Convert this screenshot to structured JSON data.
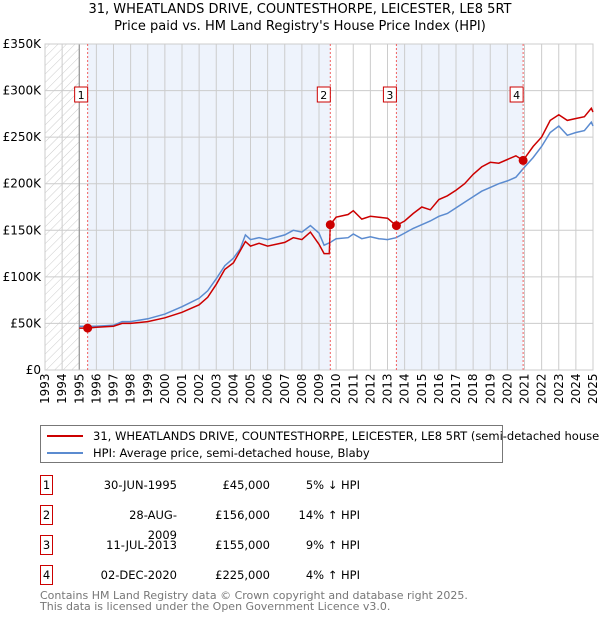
{
  "chart_data": {
    "type": "line",
    "title": "31, WHEATLANDS DRIVE, COUNTESTHORPE, LEICESTER, LE8 5RT",
    "subtitle": "Price paid vs. HM Land Registry's House Price Index (HPI)",
    "xlim": [
      1993,
      2025
    ],
    "ylim": [
      0,
      350000
    ],
    "x_ticks": [
      "1993",
      "1994",
      "1995",
      "1996",
      "1997",
      "1998",
      "1999",
      "2000",
      "2001",
      "2002",
      "2003",
      "2004",
      "2005",
      "2006",
      "2007",
      "2008",
      "2009",
      "2010",
      "2011",
      "2012",
      "2013",
      "2014",
      "2015",
      "2016",
      "2017",
      "2018",
      "2019",
      "2020",
      "2021",
      "2022",
      "2023",
      "2024",
      "2025"
    ],
    "y_ticks": [
      {
        "v": 0,
        "label": "£0"
      },
      {
        "v": 50000,
        "label": "£50K"
      },
      {
        "v": 100000,
        "label": "£100K"
      },
      {
        "v": 150000,
        "label": "£150K"
      },
      {
        "v": 200000,
        "label": "£200K"
      },
      {
        "v": 250000,
        "label": "£250K"
      },
      {
        "v": 300000,
        "label": "£300K"
      },
      {
        "v": 350000,
        "label": "£350K"
      }
    ],
    "grid": true,
    "legend_placement": "below",
    "series": [
      {
        "name": "31, WHEATLANDS DRIVE, COUNTESTHORPE, LEICESTER, LE8 5RT (semi-detached house)",
        "color": "#cc0000",
        "x": [
          1995.0,
          1995.5,
          1996,
          1997,
          1997.5,
          1998,
          1999,
          2000,
          2001,
          2002,
          2002.5,
          2003,
          2003.5,
          2004,
          2004.4,
          2004.7,
          2005,
          2005.5,
          2006,
          2007,
          2007.5,
          2008,
          2008.5,
          2009,
          2009.3,
          2009.6,
          2009.66,
          2010,
          2010.7,
          2011,
          2011.5,
          2012,
          2012.5,
          2013,
          2013.5,
          2014,
          2014.5,
          2015,
          2015.5,
          2016,
          2016.5,
          2017,
          2017.5,
          2018,
          2018.5,
          2019,
          2019.5,
          2020,
          2020.5,
          2020.92,
          2021.5,
          2022,
          2022.5,
          2023,
          2023.5,
          2024,
          2024.5,
          2024.9,
          2025
        ],
        "y": [
          45000,
          45000,
          46000,
          47000,
          50000,
          50000,
          52000,
          56000,
          62000,
          70000,
          78000,
          92000,
          108000,
          115000,
          128000,
          138000,
          133000,
          136000,
          133000,
          137000,
          142000,
          140000,
          148000,
          135000,
          125000,
          125000,
          156000,
          164000,
          167000,
          171000,
          162000,
          165000,
          164000,
          163000,
          155000,
          160000,
          168000,
          175000,
          172000,
          183000,
          187000,
          193000,
          200000,
          210000,
          218000,
          223000,
          222000,
          226000,
          230000,
          225000,
          240000,
          250000,
          268000,
          274000,
          268000,
          270000,
          272000,
          281000,
          277000
        ]
      },
      {
        "name": "HPI: Average price, semi-detached house, Blaby",
        "color": "#5b8bd0",
        "x": [
          1995.0,
          1995.5,
          1996,
          1997,
          1997.5,
          1998,
          1999,
          2000,
          2001,
          2002,
          2002.5,
          2003,
          2003.5,
          2004,
          2004.4,
          2004.7,
          2005,
          2005.5,
          2006,
          2007,
          2007.5,
          2008,
          2008.5,
          2009,
          2009.3,
          2009.66,
          2010,
          2010.7,
          2011,
          2011.5,
          2012,
          2012.5,
          2013,
          2013.5,
          2014,
          2014.5,
          2015,
          2015.5,
          2016,
          2016.5,
          2017,
          2017.5,
          2018,
          2018.5,
          2019,
          2019.5,
          2020,
          2020.5,
          2020.92,
          2021.5,
          2022,
          2022.5,
          2023,
          2023.5,
          2024,
          2024.5,
          2024.9,
          2025
        ],
        "y": [
          47000,
          47000,
          47000,
          48000,
          52000,
          52000,
          55000,
          60000,
          68000,
          77000,
          85000,
          98000,
          112000,
          120000,
          130000,
          145000,
          140000,
          142000,
          140000,
          145000,
          150000,
          148000,
          155000,
          147000,
          134000,
          137000,
          141000,
          142000,
          146000,
          141000,
          143000,
          141000,
          140000,
          142000,
          147000,
          152000,
          156000,
          160000,
          165000,
          168000,
          174000,
          180000,
          186000,
          192000,
          196000,
          200000,
          203000,
          207000,
          216000,
          228000,
          240000,
          255000,
          262000,
          252000,
          255000,
          257000,
          266000,
          262000
        ]
      }
    ],
    "sales": [
      {
        "label": "1",
        "x": 1995.49,
        "price": 45000
      },
      {
        "label": "2",
        "x": 2009.66,
        "price": 156000
      },
      {
        "label": "3",
        "x": 2013.52,
        "price": 155000
      },
      {
        "label": "4",
        "x": 2020.92,
        "price": 225000
      }
    ],
    "hatched_before": 1995.0
  },
  "title": "31, WHEATLANDS DRIVE, COUNTESTHORPE, LEICESTER, LE8 5RT",
  "subtitle": "Price paid vs. HM Land Registry's House Price Index (HPI)",
  "legend": {
    "property": "31, WHEATLANDS DRIVE, COUNTESTHORPE, LEICESTER, LE8 5RT (semi-detached house)",
    "hpi": "HPI: Average price, semi-detached house, Blaby"
  },
  "table": [
    {
      "num": "1",
      "date": "30-JUN-1995",
      "price": "£45,000",
      "hpi": "5% ↓ HPI"
    },
    {
      "num": "2",
      "date": "28-AUG-2009",
      "price": "£156,000",
      "hpi": "14% ↑ HPI"
    },
    {
      "num": "3",
      "date": "11-JUL-2013",
      "price": "£155,000",
      "hpi": "9% ↑ HPI"
    },
    {
      "num": "4",
      "date": "02-DEC-2020",
      "price": "£225,000",
      "hpi": "4% ↑ HPI"
    }
  ],
  "footer": [
    "Contains HM Land Registry data © Crown copyright and database right 2025.",
    "This data is licensed under the Open Government Licence v3.0."
  ]
}
